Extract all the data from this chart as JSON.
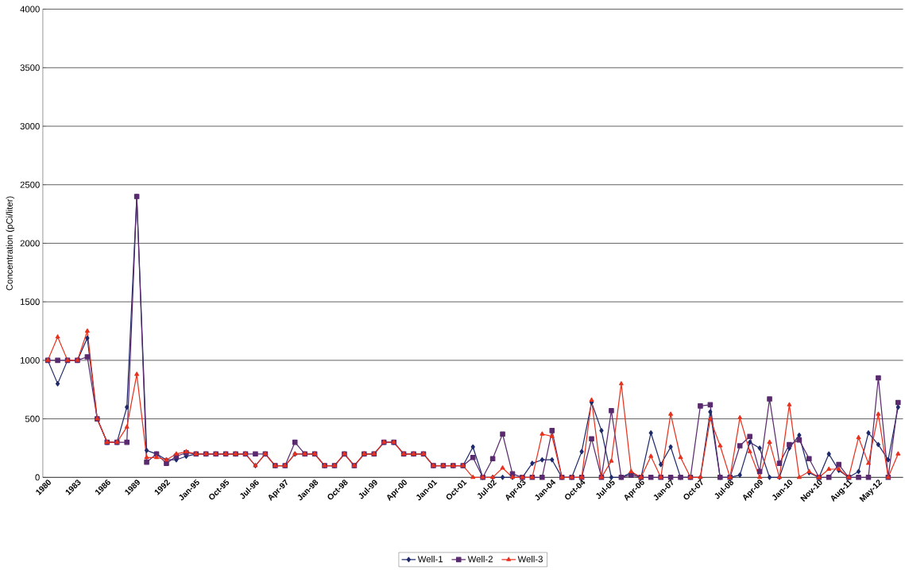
{
  "chart_data": {
    "type": "line",
    "ylabel": "Concentration (pCi/liter)",
    "categories": [
      "1980",
      null,
      null,
      "1983",
      null,
      null,
      "1986",
      null,
      null,
      "1989",
      null,
      null,
      "1992",
      null,
      null,
      "Jan-95",
      null,
      null,
      "Oct-95",
      null,
      null,
      "Jul-96",
      null,
      null,
      "Apr-97",
      null,
      null,
      "Jan-98",
      null,
      null,
      "Oct-98",
      null,
      null,
      "Jul-99",
      null,
      null,
      "Apr-00",
      null,
      null,
      "Jan-01",
      null,
      null,
      "Oct-01",
      null,
      null,
      "Jul-02",
      null,
      null,
      "Apr-03",
      null,
      null,
      "Jan-04",
      null,
      null,
      "Oct-04",
      null,
      null,
      "Jul-05",
      null,
      null,
      "Apr-06",
      null,
      null,
      "Jan-07",
      null,
      null,
      "Oct-07",
      null,
      null,
      "Jul-08",
      null,
      null,
      "Apr-09",
      null,
      null,
      "Jan-10",
      null,
      null,
      "Nov-10",
      null,
      null,
      "Aug-11",
      null,
      null,
      "May-12",
      null,
      null
    ],
    "series": [
      {
        "name": "Well-1",
        "color": "#1f2a6b",
        "marker": "diamond",
        "values": [
          1000,
          800,
          1000,
          1000,
          1190,
          500,
          300,
          300,
          600,
          2400,
          230,
          200,
          150,
          150,
          180,
          200,
          200,
          200,
          200,
          200,
          200,
          100,
          200,
          100,
          100,
          200,
          200,
          200,
          100,
          100,
          200,
          100,
          200,
          200,
          300,
          300,
          200,
          200,
          200,
          100,
          100,
          100,
          100,
          260,
          0,
          0,
          0,
          0,
          0,
          120,
          150,
          150,
          0,
          0,
          220,
          640,
          400,
          0,
          0,
          40,
          0,
          380,
          110,
          260,
          0,
          0,
          0,
          560,
          0,
          0,
          20,
          300,
          250,
          0,
          0,
          250,
          360,
          40,
          0,
          200,
          60,
          0,
          50,
          380,
          280,
          150,
          600
        ]
      },
      {
        "name": "Well-2",
        "color": "#5a2a6e",
        "marker": "square",
        "values": [
          1000,
          1000,
          1000,
          1000,
          1030,
          500,
          300,
          300,
          300,
          2400,
          130,
          200,
          120,
          180,
          210,
          200,
          200,
          200,
          200,
          200,
          200,
          200,
          200,
          100,
          100,
          300,
          200,
          200,
          100,
          100,
          200,
          100,
          200,
          200,
          300,
          300,
          200,
          200,
          200,
          100,
          100,
          100,
          100,
          170,
          0,
          160,
          370,
          30,
          0,
          0,
          0,
          400,
          0,
          0,
          0,
          330,
          0,
          570,
          0,
          20,
          0,
          0,
          0,
          0,
          0,
          0,
          610,
          620,
          0,
          0,
          270,
          350,
          50,
          670,
          120,
          280,
          320,
          160,
          0,
          0,
          110,
          0,
          0,
          0,
          850,
          0,
          640
        ]
      },
      {
        "name": "Well-3",
        "color": "#e8321e",
        "marker": "triangle",
        "values": [
          1000,
          1200,
          1000,
          1000,
          1250,
          500,
          300,
          300,
          430,
          880,
          170,
          170,
          150,
          200,
          220,
          200,
          200,
          200,
          200,
          200,
          200,
          100,
          200,
          100,
          100,
          200,
          200,
          200,
          100,
          100,
          200,
          100,
          200,
          200,
          300,
          300,
          200,
          200,
          200,
          100,
          100,
          100,
          100,
          0,
          0,
          0,
          80,
          0,
          0,
          0,
          370,
          350,
          0,
          0,
          0,
          660,
          0,
          140,
          800,
          50,
          0,
          180,
          0,
          540,
          170,
          0,
          0,
          500,
          270,
          0,
          510,
          220,
          0,
          300,
          0,
          620,
          0,
          50,
          0,
          70,
          70,
          0,
          340,
          120,
          540,
          0,
          200
        ]
      }
    ],
    "ylim": [
      0,
      4000
    ],
    "yticks": [
      0,
      500,
      1000,
      1500,
      2000,
      2500,
      3000,
      3500,
      4000
    ],
    "grid": "y",
    "legend": "bottom"
  }
}
